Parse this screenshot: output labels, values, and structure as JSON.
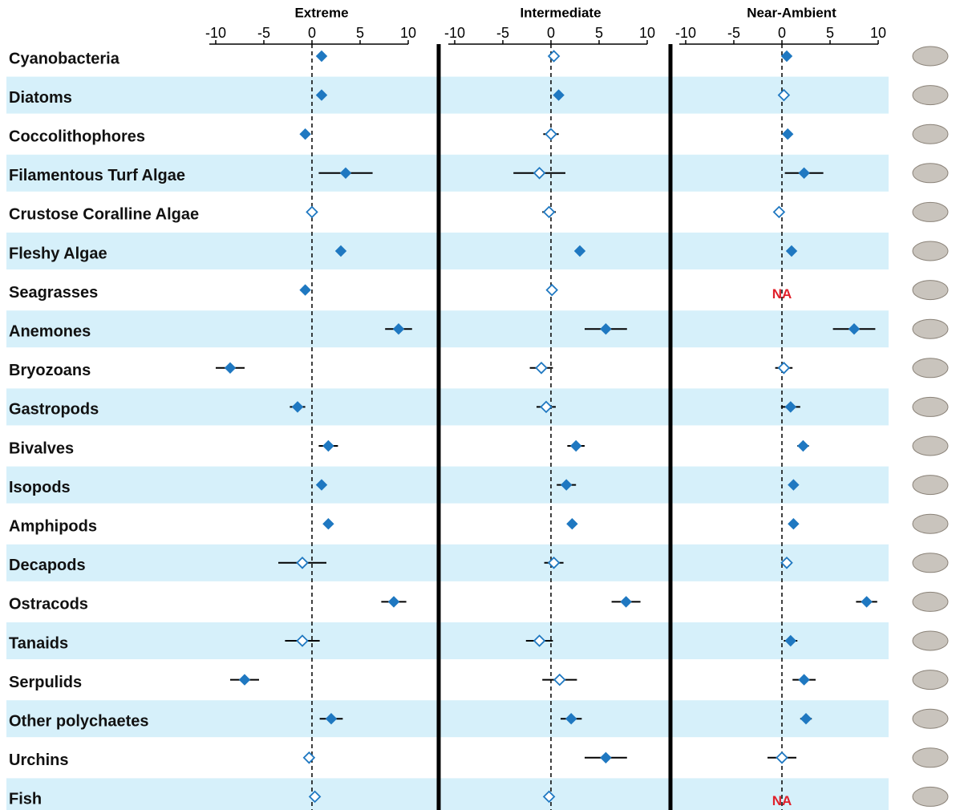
{
  "chart_data": {
    "type": "forest",
    "categories": [
      "Cyanobacteria",
      "Diatoms",
      "Coccolithophores",
      "Filamentous Turf Algae",
      "Crustose Coralline Algae",
      "Fleshy Algae",
      "Seagrasses",
      "Anemones",
      "Bryozoans",
      "Gastropods",
      "Bivalves",
      "Isopods",
      "Amphipods",
      "Decapods",
      "Ostracods",
      "Tanaids",
      "Serpulids",
      "Other polychaetes",
      "Urchins",
      "Fish"
    ],
    "color": "#1f78c1",
    "band_color": "#d6f0fa",
    "na_color": "#e0202a",
    "xlim": [
      -10,
      10
    ],
    "xticks": [
      -10,
      -5,
      0,
      5,
      10
    ],
    "panels": [
      {
        "title": "Extreme",
        "values": [
          1,
          1,
          -0.7,
          3.5,
          0,
          3,
          -0.7,
          9,
          -8.5,
          -1.5,
          1.7,
          1,
          1.7,
          -1,
          8.5,
          -1,
          -7,
          2,
          -0.3,
          0.3
        ],
        "errors": [
          0,
          0,
          0,
          2.8,
          0.5,
          0,
          0,
          1.4,
          1.5,
          0.8,
          1,
          0,
          0,
          2.5,
          1.3,
          1.8,
          1.5,
          1.2,
          0,
          0
        ],
        "filled": [
          true,
          true,
          true,
          true,
          false,
          true,
          true,
          true,
          true,
          true,
          true,
          true,
          true,
          false,
          true,
          false,
          true,
          true,
          false,
          false
        ]
      },
      {
        "title": "Intermediate",
        "values": [
          0.3,
          0.8,
          0,
          -1.2,
          -0.2,
          3,
          0.1,
          5.7,
          -1,
          -0.5,
          2.6,
          1.6,
          2.2,
          0.3,
          7.8,
          -1.2,
          0.9,
          2.1,
          5.7,
          -0.2
        ],
        "errors": [
          0,
          0,
          0.8,
          2.7,
          0.7,
          0,
          0,
          2.2,
          1.2,
          1,
          0.9,
          1,
          0,
          1,
          1.5,
          1.4,
          1.8,
          1.1,
          2.2,
          0
        ],
        "filled": [
          false,
          true,
          false,
          false,
          false,
          true,
          false,
          true,
          false,
          false,
          true,
          true,
          true,
          false,
          true,
          false,
          false,
          true,
          true,
          false
        ]
      },
      {
        "title": "Near-Ambient",
        "values": [
          0.5,
          0.2,
          0.6,
          2.3,
          -0.3,
          1,
          null,
          7.5,
          0.2,
          0.9,
          2.2,
          1.2,
          1.2,
          0.5,
          8.8,
          0.9,
          2.3,
          2.5,
          0,
          null
        ],
        "value_labels": [
          null,
          null,
          null,
          null,
          null,
          null,
          "NA",
          null,
          null,
          null,
          null,
          null,
          null,
          null,
          null,
          null,
          null,
          null,
          null,
          "NA"
        ],
        "errors": [
          0,
          0,
          0,
          2,
          0.4,
          0.5,
          null,
          2.2,
          0.9,
          1,
          0.6,
          0.4,
          0,
          0.4,
          1.1,
          0.7,
          1.2,
          0.6,
          1.5,
          null
        ],
        "filled": [
          true,
          false,
          true,
          true,
          false,
          true,
          null,
          true,
          false,
          true,
          true,
          true,
          true,
          false,
          true,
          true,
          true,
          true,
          false,
          null
        ]
      }
    ]
  }
}
